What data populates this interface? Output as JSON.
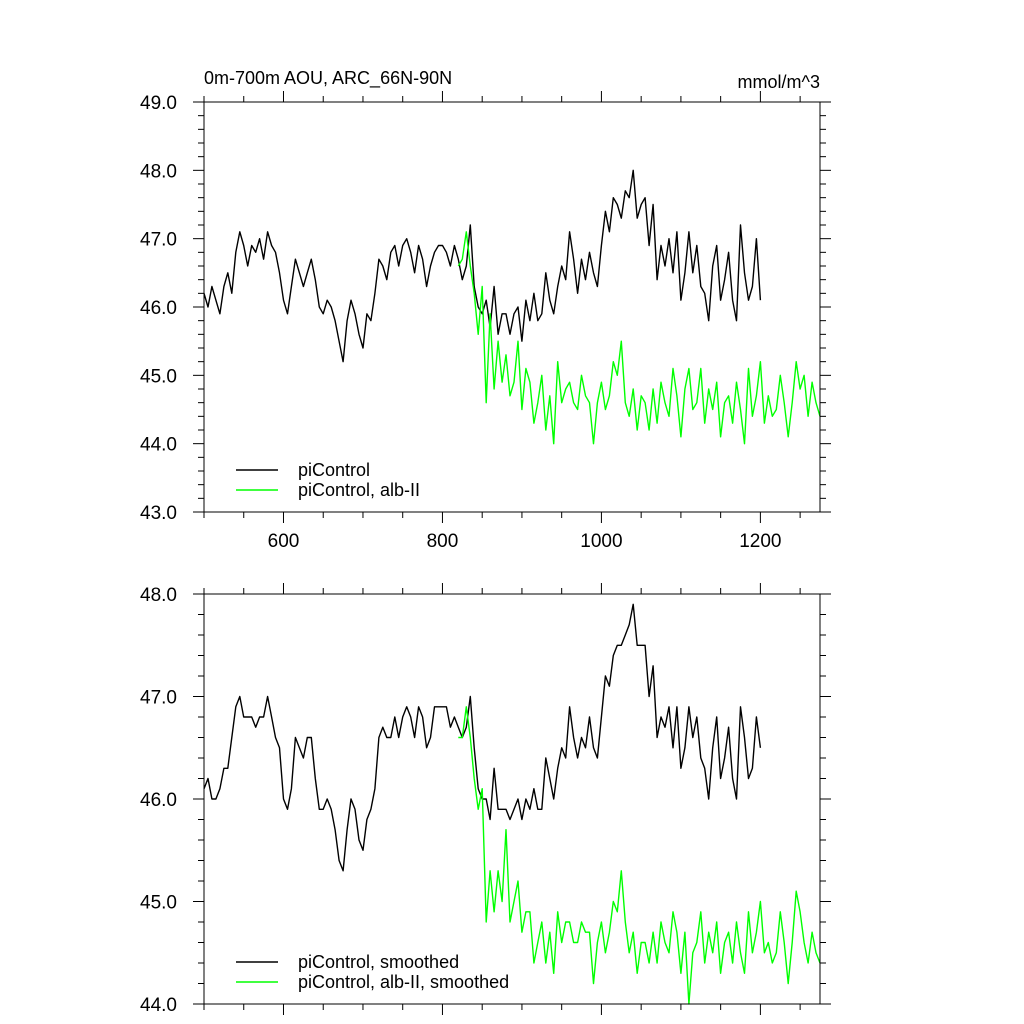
{
  "chart_data": [
    {
      "type": "line",
      "title": "0m-700m AOU, ARC_66N-90N",
      "units": "mmol/m^3",
      "xlabel": "",
      "ylabel": "",
      "xlim": [
        500,
        1275
      ],
      "ylim": [
        43.0,
        49.0
      ],
      "xticks": [
        600,
        800,
        1000,
        1200
      ],
      "yticks": [
        43.0,
        44.0,
        45.0,
        46.0,
        47.0,
        48.0,
        49.0
      ],
      "ytick_labels": [
        "43.0",
        "44.0",
        "45.0",
        "46.0",
        "47.0",
        "48.0",
        "49.0"
      ],
      "grid": false,
      "legend_position": "bottom-left",
      "series": [
        {
          "name": "piControl",
          "color": "#000000",
          "x": [
            500,
            505,
            510,
            515,
            520,
            525,
            530,
            535,
            540,
            545,
            550,
            555,
            560,
            565,
            570,
            575,
            580,
            585,
            590,
            595,
            600,
            605,
            610,
            615,
            620,
            625,
            630,
            635,
            640,
            645,
            650,
            655,
            660,
            665,
            670,
            675,
            680,
            685,
            690,
            695,
            700,
            705,
            710,
            715,
            720,
            725,
            730,
            735,
            740,
            745,
            750,
            755,
            760,
            765,
            770,
            775,
            780,
            785,
            790,
            795,
            800,
            805,
            810,
            815,
            820,
            825,
            830,
            835,
            840,
            845,
            850,
            855,
            860,
            865,
            870,
            875,
            880,
            885,
            890,
            895,
            900,
            905,
            910,
            915,
            920,
            925,
            930,
            935,
            940,
            945,
            950,
            955,
            960,
            965,
            970,
            975,
            980,
            985,
            990,
            995,
            1000,
            1005,
            1010,
            1015,
            1020,
            1025,
            1030,
            1035,
            1040,
            1045,
            1050,
            1055,
            1060,
            1065,
            1070,
            1075,
            1080,
            1085,
            1090,
            1095,
            1100,
            1105,
            1110,
            1115,
            1120,
            1125,
            1130,
            1135,
            1140,
            1145,
            1150,
            1155,
            1160,
            1165,
            1170,
            1175,
            1180,
            1185,
            1190,
            1195,
            1200
          ],
          "values": [
            46.2,
            46.0,
            46.3,
            46.1,
            45.9,
            46.3,
            46.5,
            46.2,
            46.8,
            47.1,
            46.9,
            46.6,
            46.9,
            46.8,
            47.0,
            46.7,
            47.1,
            46.9,
            46.8,
            46.5,
            46.1,
            45.9,
            46.3,
            46.7,
            46.5,
            46.3,
            46.5,
            46.7,
            46.4,
            46.0,
            45.9,
            46.1,
            46.0,
            45.8,
            45.5,
            45.2,
            45.8,
            46.1,
            45.9,
            45.6,
            45.4,
            45.9,
            45.8,
            46.2,
            46.7,
            46.6,
            46.4,
            46.8,
            46.9,
            46.6,
            46.9,
            47.0,
            46.8,
            46.5,
            46.9,
            46.7,
            46.3,
            46.6,
            46.8,
            46.9,
            46.9,
            46.8,
            46.6,
            46.9,
            46.7,
            46.4,
            46.6,
            47.2,
            46.3,
            46.0,
            45.9,
            46.1,
            45.7,
            46.3,
            45.6,
            45.9,
            45.9,
            45.6,
            45.9,
            46.0,
            45.5,
            46.1,
            45.8,
            46.2,
            45.8,
            45.9,
            46.5,
            46.1,
            45.9,
            46.3,
            46.6,
            46.4,
            47.1,
            46.7,
            46.2,
            46.7,
            46.4,
            46.8,
            46.5,
            46.3,
            46.9,
            47.4,
            47.1,
            47.6,
            47.5,
            47.3,
            47.7,
            47.6,
            48.0,
            47.3,
            47.5,
            47.6,
            46.9,
            47.5,
            46.4,
            46.9,
            46.6,
            47.0,
            46.5,
            47.1,
            46.1,
            46.5,
            47.1,
            46.5,
            46.9,
            46.3,
            46.2,
            45.8,
            46.6,
            46.9,
            46.1,
            46.4,
            46.8,
            46.1,
            45.8,
            47.2,
            46.5,
            46.1,
            46.3,
            47.0,
            46.1
          ]
        },
        {
          "name": "piControl, alb-II",
          "color": "#00ff00",
          "x": [
            820,
            825,
            830,
            835,
            840,
            845,
            850,
            855,
            860,
            865,
            870,
            875,
            880,
            885,
            890,
            895,
            900,
            905,
            910,
            915,
            920,
            925,
            930,
            935,
            940,
            945,
            950,
            955,
            960,
            965,
            970,
            975,
            980,
            985,
            990,
            995,
            1000,
            1005,
            1010,
            1015,
            1020,
            1025,
            1030,
            1035,
            1040,
            1045,
            1050,
            1055,
            1060,
            1065,
            1070,
            1075,
            1080,
            1085,
            1090,
            1095,
            1100,
            1105,
            1110,
            1115,
            1120,
            1125,
            1130,
            1135,
            1140,
            1145,
            1150,
            1155,
            1160,
            1165,
            1170,
            1175,
            1180,
            1185,
            1190,
            1195,
            1200,
            1205,
            1210,
            1215,
            1220,
            1225,
            1230,
            1235,
            1240,
            1245,
            1250,
            1255,
            1260,
            1265,
            1270,
            1275
          ],
          "values": [
            46.6,
            46.7,
            47.1,
            46.6,
            46.2,
            45.6,
            46.3,
            44.6,
            45.9,
            44.8,
            45.5,
            44.9,
            45.3,
            44.7,
            44.9,
            45.5,
            44.5,
            45.1,
            44.9,
            44.3,
            44.6,
            45.0,
            44.2,
            44.7,
            44.0,
            45.2,
            44.6,
            44.8,
            44.9,
            44.6,
            44.5,
            45.0,
            44.7,
            44.6,
            44.0,
            44.6,
            44.9,
            44.5,
            44.7,
            45.2,
            45.0,
            45.5,
            44.6,
            44.4,
            44.8,
            44.2,
            44.7,
            44.6,
            44.2,
            44.8,
            44.3,
            44.9,
            44.6,
            44.4,
            45.1,
            44.7,
            44.1,
            44.8,
            45.1,
            44.5,
            44.6,
            45.1,
            44.3,
            44.8,
            44.5,
            44.9,
            44.1,
            44.6,
            44.7,
            44.3,
            44.9,
            44.5,
            44.0,
            45.1,
            44.4,
            44.7,
            45.2,
            44.3,
            44.7,
            44.4,
            44.5,
            45.0,
            44.6,
            44.1,
            44.6,
            45.2,
            44.8,
            45.0,
            44.4,
            44.9,
            44.6,
            44.4
          ]
        }
      ]
    },
    {
      "type": "line",
      "title": "",
      "xlabel": "",
      "ylabel": "",
      "xlim": [
        500,
        1275
      ],
      "ylim": [
        44.0,
        48.0
      ],
      "xticks": [
        600,
        800,
        1000,
        1200
      ],
      "yticks": [
        44.0,
        45.0,
        46.0,
        47.0,
        48.0
      ],
      "ytick_labels": [
        "44.0",
        "45.0",
        "46.0",
        "47.0",
        "48.0"
      ],
      "grid": false,
      "legend_position": "bottom-left",
      "series": [
        {
          "name": "piControl, smoothed",
          "color": "#000000",
          "x": [
            500,
            505,
            510,
            515,
            520,
            525,
            530,
            535,
            540,
            545,
            550,
            555,
            560,
            565,
            570,
            575,
            580,
            585,
            590,
            595,
            600,
            605,
            610,
            615,
            620,
            625,
            630,
            635,
            640,
            645,
            650,
            655,
            660,
            665,
            670,
            675,
            680,
            685,
            690,
            695,
            700,
            705,
            710,
            715,
            720,
            725,
            730,
            735,
            740,
            745,
            750,
            755,
            760,
            765,
            770,
            775,
            780,
            785,
            790,
            795,
            800,
            805,
            810,
            815,
            820,
            825,
            830,
            835,
            840,
            845,
            850,
            855,
            860,
            865,
            870,
            875,
            880,
            885,
            890,
            895,
            900,
            905,
            910,
            915,
            920,
            925,
            930,
            935,
            940,
            945,
            950,
            955,
            960,
            965,
            970,
            975,
            980,
            985,
            990,
            995,
            1000,
            1005,
            1010,
            1015,
            1020,
            1025,
            1030,
            1035,
            1040,
            1045,
            1050,
            1055,
            1060,
            1065,
            1070,
            1075,
            1080,
            1085,
            1090,
            1095,
            1100,
            1105,
            1110,
            1115,
            1120,
            1125,
            1130,
            1135,
            1140,
            1145,
            1150,
            1155,
            1160,
            1165,
            1170,
            1175,
            1180,
            1185,
            1190,
            1195,
            1200
          ],
          "values": [
            46.1,
            46.2,
            46.0,
            46.0,
            46.1,
            46.3,
            46.3,
            46.6,
            46.9,
            47.0,
            46.8,
            46.8,
            46.8,
            46.7,
            46.8,
            46.8,
            47.0,
            46.8,
            46.6,
            46.5,
            46.0,
            45.9,
            46.1,
            46.6,
            46.5,
            46.4,
            46.6,
            46.6,
            46.2,
            45.9,
            45.9,
            46.0,
            45.9,
            45.7,
            45.4,
            45.3,
            45.7,
            46.0,
            45.9,
            45.6,
            45.5,
            45.8,
            45.9,
            46.1,
            46.6,
            46.7,
            46.6,
            46.6,
            46.8,
            46.6,
            46.8,
            46.9,
            46.8,
            46.6,
            46.9,
            46.8,
            46.5,
            46.6,
            46.9,
            46.9,
            46.9,
            46.9,
            46.7,
            46.8,
            46.7,
            46.6,
            46.7,
            47.0,
            46.5,
            46.1,
            46.0,
            46.0,
            45.8,
            46.3,
            45.9,
            45.9,
            45.9,
            45.8,
            45.9,
            46.0,
            45.8,
            46.0,
            45.9,
            46.1,
            45.9,
            45.9,
            46.4,
            46.2,
            46.0,
            46.3,
            46.5,
            46.4,
            46.9,
            46.6,
            46.4,
            46.6,
            46.5,
            46.8,
            46.5,
            46.4,
            46.8,
            47.2,
            47.1,
            47.4,
            47.5,
            47.5,
            47.6,
            47.7,
            47.9,
            47.5,
            47.5,
            47.5,
            47.0,
            47.3,
            46.6,
            46.8,
            46.7,
            46.9,
            46.5,
            46.9,
            46.3,
            46.5,
            46.9,
            46.6,
            46.8,
            46.4,
            46.3,
            46.0,
            46.5,
            46.8,
            46.2,
            46.4,
            46.7,
            46.2,
            46.0,
            46.9,
            46.6,
            46.2,
            46.3,
            46.8,
            46.5
          ]
        },
        {
          "name": "piControl, alb-II, smoothed",
          "color": "#00ff00",
          "x": [
            820,
            825,
            830,
            835,
            840,
            845,
            850,
            855,
            860,
            865,
            870,
            875,
            880,
            885,
            890,
            895,
            900,
            905,
            910,
            915,
            920,
            925,
            930,
            935,
            940,
            945,
            950,
            955,
            960,
            965,
            970,
            975,
            980,
            985,
            990,
            995,
            1000,
            1005,
            1010,
            1015,
            1020,
            1025,
            1030,
            1035,
            1040,
            1045,
            1050,
            1055,
            1060,
            1065,
            1070,
            1075,
            1080,
            1085,
            1090,
            1095,
            1100,
            1105,
            1110,
            1115,
            1120,
            1125,
            1130,
            1135,
            1140,
            1145,
            1150,
            1155,
            1160,
            1165,
            1170,
            1175,
            1180,
            1185,
            1190,
            1195,
            1200,
            1205,
            1210,
            1215,
            1220,
            1225,
            1230,
            1235,
            1240,
            1245,
            1250,
            1255,
            1260,
            1265,
            1270,
            1275
          ],
          "values": [
            46.6,
            46.6,
            46.9,
            46.6,
            46.2,
            45.9,
            46.1,
            44.8,
            45.3,
            44.9,
            45.3,
            45.0,
            45.7,
            44.8,
            45.0,
            45.2,
            44.7,
            44.9,
            44.9,
            44.4,
            44.6,
            44.8,
            44.4,
            44.7,
            44.3,
            44.9,
            44.6,
            44.8,
            44.8,
            44.6,
            44.6,
            44.8,
            44.7,
            44.7,
            44.2,
            44.6,
            44.8,
            44.5,
            44.7,
            45.0,
            44.9,
            45.3,
            44.8,
            44.5,
            44.7,
            44.3,
            44.6,
            44.6,
            44.4,
            44.7,
            44.4,
            44.8,
            44.6,
            44.5,
            44.9,
            44.7,
            44.3,
            44.7,
            44.0,
            44.5,
            44.6,
            44.9,
            44.4,
            44.7,
            44.5,
            44.8,
            44.3,
            44.6,
            44.7,
            44.4,
            44.8,
            44.5,
            44.3,
            44.9,
            44.5,
            44.7,
            45.0,
            44.5,
            44.6,
            44.4,
            44.5,
            44.9,
            44.6,
            44.2,
            44.6,
            45.1,
            44.9,
            44.6,
            44.4,
            44.7,
            44.5,
            44.4
          ]
        }
      ]
    }
  ]
}
